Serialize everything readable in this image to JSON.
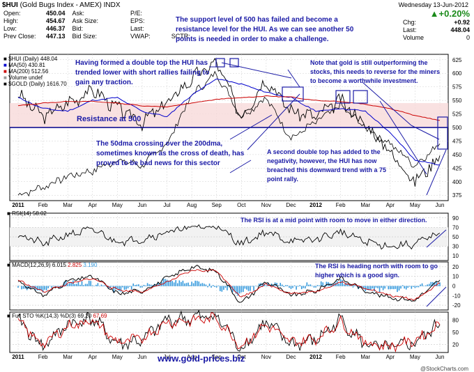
{
  "header": {
    "symbol": "$HUI",
    "name": "(Gold Bugs Index - AMEX)",
    "exchange": "INDX",
    "date": "Wednesday  13-Jun-2012",
    "source": "@StockCharts.com",
    "pct_change": "+0.20%",
    "chg_label": "Chg:",
    "chg_value": "+0.92",
    "last_label": "Last:",
    "last_value": "448.04",
    "volume_label": "Volume",
    "volume_value": "0"
  },
  "quote_table": {
    "rows": [
      {
        "l1": "Open:",
        "v1": "450.04",
        "l2": "Ask:",
        "v2": "",
        "l3": "P/E:",
        "v3": ""
      },
      {
        "l1": "High:",
        "v1": "454.67",
        "l2": "Ask Size:",
        "v2": "",
        "l3": "EPS:",
        "v3": ""
      },
      {
        "l1": "Low:",
        "v1": "446.37",
        "l2": "Bid:",
        "v2": "",
        "l3": "Last:",
        "v3": ""
      },
      {
        "l1": "Prev Close:",
        "v1": "447.13",
        "l2": "Bid Size:",
        "v2": "",
        "l3": "VWAP:",
        "v3": "",
        "l4": "SCTR:"
      }
    ]
  },
  "legend": {
    "hui": "$HUI (Daily) 448.04",
    "ma50": "MA(50) 430.81",
    "ma200": "MA(200) 512.56",
    "volume": "Volume undef",
    "gold": "$GOLD (Daily) 1616.70",
    "rsi": "RSI(14) 58.02",
    "macd_label": "MACD(12,26,9)",
    "macd_v1": "6.015",
    "macd_v2": "2.825",
    "macd_v3": "3.190",
    "sto_label": "Full STO %K(14,3) %D(3)",
    "sto_v1": "69.20",
    "sto_v2": "67.69"
  },
  "annotations": {
    "support": "The support level of 500 has failed and become a resistance level for the HUI. As we can see another 50 points is needed in order to make a challenge.",
    "double_top": "Having formed a double top the HUI has trended lower with short rallies failing to gain any traction.",
    "gold_note": "Note that gold is still outperforming the stocks, this needs to reverse for the miners to become a worthwhile investment.",
    "resistance": "Resistance at 500",
    "cross": "The 50dma crossing over the 200dma, sometimes known as the cross of death, has proved to be bad news for this sector",
    "second_top": "A second double top has added to the negativity, however, the HUI has now breached this downward trend with a 75 point rally.",
    "rsi_note": "The RSI is at a mid point with room to move in either direction.",
    "macd_note": "The RSI is heading north with room to go higher which is a good sign.",
    "website": "www.gold-prices.biz"
  },
  "colors": {
    "price": "#000000",
    "ma50": "#0000cc",
    "ma200": "#cc0000",
    "gold": "#000000",
    "annotation": "#1a1aa6",
    "macd_hist": "#3399dd",
    "sto_d": "#cc0000"
  },
  "chart_data": [
    {
      "type": "line",
      "title": "$HUI (Gold Bugs Index - AMEX)",
      "x": [
        "2011-01",
        "2011-02",
        "2011-03",
        "2011-04",
        "2011-05",
        "2011-06",
        "2011-07",
        "2011-08",
        "2011-09",
        "2011-10",
        "2011-11",
        "2011-12",
        "2012-01",
        "2012-02",
        "2012-03",
        "2012-04",
        "2012-05",
        "2012-06"
      ],
      "series": [
        {
          "name": "$HUI (Daily)",
          "values": [
            560,
            520,
            545,
            570,
            535,
            510,
            545,
            590,
            620,
            520,
            590,
            530,
            520,
            550,
            505,
            455,
            400,
            448
          ]
        },
        {
          "name": "MA(50)",
          "values": [
            555,
            535,
            530,
            550,
            555,
            530,
            520,
            560,
            590,
            580,
            565,
            555,
            530,
            535,
            530,
            490,
            440,
            431
          ]
        },
        {
          "name": "MA(200)",
          "values": [
            540,
            545,
            548,
            548,
            545,
            540,
            538,
            545,
            552,
            555,
            558,
            556,
            550,
            548,
            543,
            535,
            522,
            513
          ]
        }
      ],
      "x_tick_labels": [
        "2011",
        "Feb",
        "Mar",
        "Apr",
        "May",
        "Jun",
        "Jul",
        "Aug",
        "Sep",
        "Oct",
        "Nov",
        "Dec",
        "2012",
        "Feb",
        "Mar",
        "Apr",
        "May",
        "Jun"
      ],
      "y_tick_labels": [
        "375",
        "400",
        "425",
        "450",
        "475",
        "500",
        "525",
        "550",
        "575",
        "600",
        "625"
      ],
      "ylim": [
        365,
        635
      ],
      "resistance_level": 500,
      "grid": true
    },
    {
      "type": "line",
      "title": "RSI(14)",
      "series": [
        {
          "name": "RSI(14)",
          "values": [
            55,
            35,
            55,
            65,
            40,
            45,
            60,
            70,
            72,
            35,
            60,
            40,
            45,
            60,
            40,
            30,
            35,
            58
          ]
        }
      ],
      "y_tick_labels": [
        "10",
        "30",
        "50",
        "70",
        "90"
      ],
      "ylim": [
        0,
        100
      ]
    },
    {
      "type": "line",
      "title": "MACD(12,26,9)",
      "series": [
        {
          "name": "MACD",
          "values": [
            5,
            -10,
            5,
            10,
            -8,
            -5,
            8,
            20,
            15,
            -18,
            5,
            -10,
            -5,
            8,
            -5,
            -12,
            -15,
            6
          ]
        },
        {
          "name": "Signal",
          "values": [
            6,
            -6,
            2,
            8,
            -4,
            -6,
            4,
            16,
            16,
            -12,
            2,
            -8,
            -6,
            4,
            -2,
            -10,
            -14,
            3
          ]
        }
      ],
      "y_tick_labels": [
        "20",
        "10",
        "0",
        "-10",
        "-20"
      ],
      "ylim": [
        -25,
        25
      ]
    },
    {
      "type": "line",
      "title": "Full STO %K(14,3) %D(3)",
      "series": [
        {
          "name": "%K",
          "values": [
            80,
            15,
            70,
            85,
            20,
            30,
            80,
            85,
            90,
            10,
            75,
            20,
            30,
            80,
            20,
            10,
            25,
            69
          ]
        },
        {
          "name": "%D",
          "values": [
            75,
            20,
            65,
            80,
            25,
            35,
            75,
            80,
            85,
            15,
            70,
            25,
            35,
            75,
            25,
            15,
            30,
            68
          ]
        }
      ],
      "y_tick_labels": [
        "80",
        "50",
        "20"
      ],
      "ylim": [
        0,
        100
      ]
    }
  ]
}
